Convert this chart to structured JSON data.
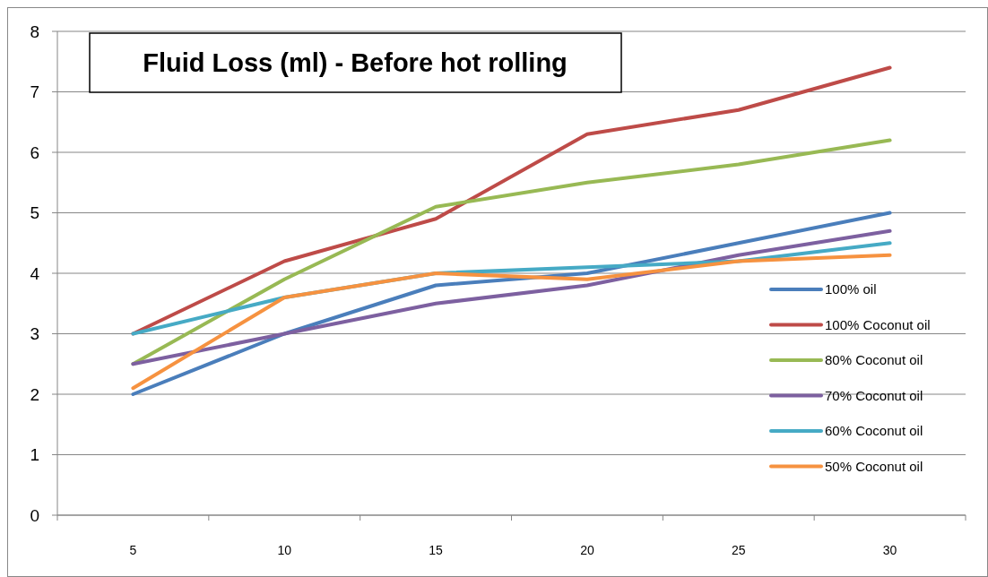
{
  "chart_data": {
    "type": "line",
    "title": "Fluid Loss (ml) - Before hot rolling",
    "categories": [
      "5",
      "10",
      "15",
      "20",
      "25",
      "30"
    ],
    "ylim": [
      0,
      8
    ],
    "yticks": [
      0,
      1,
      2,
      3,
      4,
      5,
      6,
      7,
      8
    ],
    "grid": "y",
    "legend": "right",
    "marker": "none",
    "line_style": "solid",
    "series": [
      {
        "name": "100% oil",
        "color": "#4a7ebb",
        "values": [
          2,
          3,
          3.8,
          4,
          4.5,
          5
        ]
      },
      {
        "name": "100% Coconut oil",
        "color": "#be4b48",
        "values": [
          3,
          4.2,
          4.9,
          6.3,
          6.7,
          7.4
        ]
      },
      {
        "name": "80% Coconut oil",
        "color": "#98b954",
        "values": [
          2.5,
          3.9,
          5.1,
          5.5,
          5.8,
          6.2
        ]
      },
      {
        "name": "70% Coconut oil",
        "color": "#7d60a0",
        "values": [
          2.5,
          3,
          3.5,
          3.8,
          4.3,
          4.7
        ]
      },
      {
        "name": "60% Coconut oil",
        "color": "#46aac5",
        "values": [
          3,
          3.6,
          4,
          4.1,
          4.2,
          4.5
        ]
      },
      {
        "name": "50% Coconut oil",
        "color": "#f69240",
        "values": [
          2.1,
          3.6,
          4,
          3.9,
          4.2,
          4.3
        ]
      }
    ]
  }
}
